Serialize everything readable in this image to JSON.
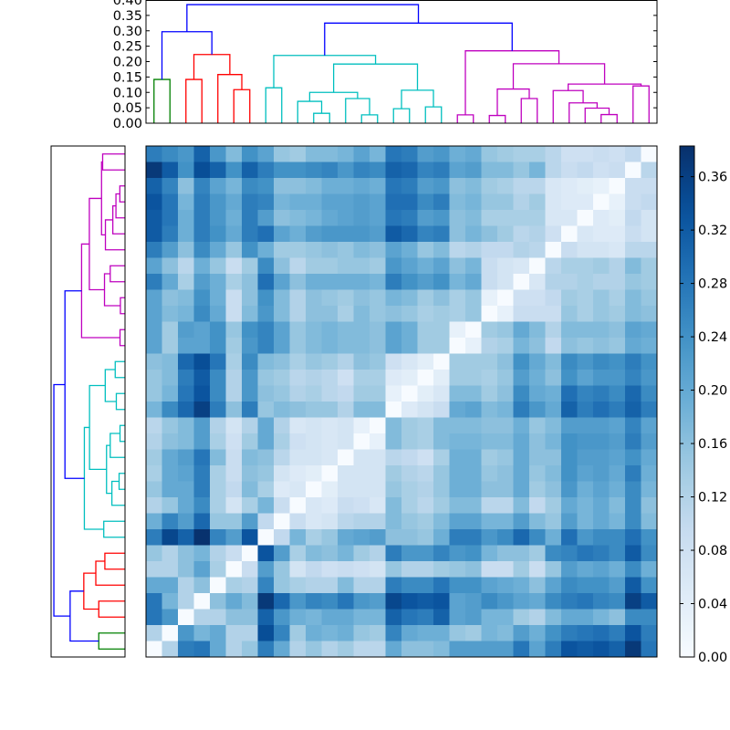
{
  "chart_data": {
    "type": "heatmap",
    "title": "",
    "colormap": "Blues",
    "vmin": 0.0,
    "vmax": 0.383,
    "colorbar": {
      "ticks": [
        0.0,
        0.04,
        0.08,
        0.12,
        0.16,
        0.2,
        0.24,
        0.28,
        0.32,
        0.36
      ],
      "tick_labels": [
        "0.00",
        "0.04",
        "0.08",
        "0.12",
        "0.16",
        "0.20",
        "0.24",
        "0.28",
        "0.32",
        "0.36"
      ]
    },
    "top_dendrogram_axis": {
      "ylim": [
        0.0,
        0.4
      ],
      "ticks": [
        0.0,
        0.05,
        0.1,
        0.15,
        0.2,
        0.25,
        0.3,
        0.35,
        0.4
      ],
      "tick_labels": [
        "0.00",
        "0.05",
        "0.10",
        "0.15",
        "0.20",
        "0.25",
        "0.30",
        "0.35",
        "0.40"
      ]
    },
    "cluster_colors": {
      "green": "#008000",
      "red": "#ff0000",
      "cyan": "#00bfbf",
      "magenta": "#bf00bf",
      "blue": "#0000ff"
    },
    "linkage": [
      [
        10,
        11,
        0.032,
        "cyan"
      ],
      [
        13,
        14,
        0.027,
        "cyan"
      ],
      [
        19,
        20,
        0.027,
        "magenta"
      ],
      [
        21,
        22,
        0.025,
        "magenta"
      ],
      [
        28,
        29,
        0.028,
        "magenta"
      ],
      [
        15,
        16,
        0.047,
        "cyan"
      ],
      [
        17,
        18,
        0.053,
        "cyan"
      ],
      [
        27,
        36,
        0.049,
        "magenta"
      ],
      [
        26,
        39,
        0.066,
        "magenta"
      ],
      [
        9,
        32,
        0.071,
        "cyan"
      ],
      [
        12,
        33,
        0.08,
        "cyan"
      ],
      [
        23,
        24,
        0.08,
        "magenta"
      ],
      [
        41,
        42,
        0.1,
        "cyan"
      ],
      [
        25,
        40,
        0.106,
        "magenta"
      ],
      [
        37,
        38,
        0.107,
        "cyan"
      ],
      [
        5,
        6,
        0.109,
        "red"
      ],
      [
        35,
        43,
        0.111,
        "magenta"
      ],
      [
        7,
        8,
        0.115,
        "cyan"
      ],
      [
        30,
        31,
        0.121,
        "magenta"
      ],
      [
        45,
        50,
        0.127,
        "magenta"
      ],
      [
        0,
        1,
        0.142,
        "green"
      ],
      [
        2,
        3,
        0.142,
        "red"
      ],
      [
        4,
        47,
        0.158,
        "red"
      ],
      [
        44,
        46,
        0.192,
        "cyan"
      ],
      [
        48,
        51,
        0.193,
        "magenta"
      ],
      [
        49,
        55,
        0.22,
        "cyan"
      ],
      [
        53,
        54,
        0.223,
        "red"
      ],
      [
        34,
        56,
        0.235,
        "magenta"
      ],
      [
        52,
        58,
        0.297,
        "blue"
      ],
      [
        57,
        59,
        0.325,
        "blue"
      ],
      [
        60,
        61,
        0.385,
        "blue"
      ]
    ],
    "values": [
      [
        0.27,
        0.25,
        0.23,
        0.31,
        0.23,
        0.17,
        0.24,
        0.21,
        0.15,
        0.14,
        0.17,
        0.17,
        0.18,
        0.21,
        0.18,
        0.28,
        0.27,
        0.22,
        0.23,
        0.19,
        0.2,
        0.15,
        0.14,
        0.13,
        0.13,
        0.11,
        0.08,
        0.08,
        0.09,
        0.08,
        0.1,
        0.0
      ],
      [
        0.37,
        0.32,
        0.24,
        0.34,
        0.31,
        0.24,
        0.31,
        0.27,
        0.24,
        0.24,
        0.25,
        0.26,
        0.23,
        0.26,
        0.25,
        0.31,
        0.3,
        0.26,
        0.27,
        0.21,
        0.22,
        0.17,
        0.17,
        0.15,
        0.18,
        0.11,
        0.09,
        0.1,
        0.08,
        0.09,
        0.0,
        0.11
      ],
      [
        0.31,
        0.26,
        0.16,
        0.26,
        0.21,
        0.18,
        0.25,
        0.24,
        0.16,
        0.16,
        0.17,
        0.19,
        0.19,
        0.2,
        0.19,
        0.28,
        0.27,
        0.22,
        0.23,
        0.16,
        0.17,
        0.14,
        0.13,
        0.11,
        0.11,
        0.06,
        0.05,
        0.04,
        0.03,
        0.0,
        0.09,
        0.09
      ],
      [
        0.33,
        0.28,
        0.18,
        0.27,
        0.23,
        0.2,
        0.27,
        0.26,
        0.18,
        0.19,
        0.19,
        0.21,
        0.21,
        0.22,
        0.21,
        0.29,
        0.29,
        0.25,
        0.27,
        0.17,
        0.18,
        0.15,
        0.15,
        0.12,
        0.14,
        0.06,
        0.05,
        0.05,
        0.0,
        0.03,
        0.09,
        0.1
      ],
      [
        0.32,
        0.28,
        0.19,
        0.27,
        0.23,
        0.19,
        0.27,
        0.22,
        0.16,
        0.17,
        0.18,
        0.2,
        0.21,
        0.22,
        0.21,
        0.28,
        0.27,
        0.22,
        0.23,
        0.16,
        0.17,
        0.13,
        0.13,
        0.13,
        0.13,
        0.06,
        0.06,
        0.0,
        0.05,
        0.04,
        0.1,
        0.07
      ],
      [
        0.32,
        0.27,
        0.19,
        0.27,
        0.24,
        0.2,
        0.27,
        0.29,
        0.21,
        0.19,
        0.22,
        0.23,
        0.23,
        0.23,
        0.22,
        0.32,
        0.3,
        0.26,
        0.27,
        0.16,
        0.18,
        0.16,
        0.14,
        0.11,
        0.12,
        0.08,
        0.0,
        0.06,
        0.05,
        0.05,
        0.09,
        0.07
      ],
      [
        0.27,
        0.22,
        0.16,
        0.25,
        0.2,
        0.15,
        0.24,
        0.19,
        0.14,
        0.14,
        0.15,
        0.16,
        0.15,
        0.17,
        0.16,
        0.21,
        0.19,
        0.15,
        0.17,
        0.11,
        0.12,
        0.1,
        0.1,
        0.12,
        0.11,
        0.0,
        0.09,
        0.07,
        0.07,
        0.06,
        0.11,
        0.11
      ],
      [
        0.21,
        0.16,
        0.11,
        0.19,
        0.15,
        0.09,
        0.14,
        0.25,
        0.16,
        0.11,
        0.14,
        0.14,
        0.15,
        0.15,
        0.14,
        0.23,
        0.21,
        0.19,
        0.21,
        0.16,
        0.18,
        0.09,
        0.07,
        0.06,
        0.0,
        0.11,
        0.13,
        0.13,
        0.14,
        0.12,
        0.17,
        0.14
      ],
      [
        0.27,
        0.2,
        0.13,
        0.22,
        0.19,
        0.13,
        0.16,
        0.29,
        0.21,
        0.16,
        0.19,
        0.19,
        0.19,
        0.19,
        0.18,
        0.27,
        0.24,
        0.22,
        0.24,
        0.18,
        0.2,
        0.09,
        0.07,
        0.0,
        0.06,
        0.12,
        0.12,
        0.13,
        0.12,
        0.12,
        0.15,
        0.14
      ],
      [
        0.21,
        0.16,
        0.17,
        0.24,
        0.19,
        0.09,
        0.16,
        0.24,
        0.17,
        0.12,
        0.16,
        0.15,
        0.14,
        0.16,
        0.15,
        0.18,
        0.17,
        0.14,
        0.16,
        0.13,
        0.15,
        0.03,
        0.0,
        0.08,
        0.08,
        0.1,
        0.14,
        0.13,
        0.15,
        0.13,
        0.17,
        0.15
      ],
      [
        0.21,
        0.17,
        0.18,
        0.25,
        0.2,
        0.09,
        0.17,
        0.23,
        0.17,
        0.12,
        0.16,
        0.16,
        0.13,
        0.17,
        0.15,
        0.16,
        0.15,
        0.13,
        0.14,
        0.13,
        0.15,
        0.0,
        0.03,
        0.09,
        0.09,
        0.09,
        0.15,
        0.13,
        0.15,
        0.14,
        0.17,
        0.16
      ],
      [
        0.21,
        0.14,
        0.22,
        0.21,
        0.24,
        0.15,
        0.24,
        0.26,
        0.21,
        0.15,
        0.17,
        0.18,
        0.17,
        0.17,
        0.16,
        0.21,
        0.19,
        0.14,
        0.14,
        0.03,
        0.0,
        0.14,
        0.15,
        0.2,
        0.17,
        0.12,
        0.17,
        0.17,
        0.17,
        0.16,
        0.21,
        0.2
      ],
      [
        0.21,
        0.14,
        0.21,
        0.21,
        0.24,
        0.14,
        0.23,
        0.26,
        0.21,
        0.15,
        0.17,
        0.18,
        0.17,
        0.17,
        0.16,
        0.21,
        0.19,
        0.14,
        0.14,
        0.0,
        0.03,
        0.12,
        0.13,
        0.18,
        0.16,
        0.1,
        0.16,
        0.15,
        0.16,
        0.15,
        0.2,
        0.19
      ],
      [
        0.16,
        0.17,
        0.3,
        0.34,
        0.28,
        0.13,
        0.25,
        0.17,
        0.16,
        0.13,
        0.15,
        0.14,
        0.12,
        0.16,
        0.15,
        0.08,
        0.06,
        0.04,
        0.0,
        0.14,
        0.14,
        0.14,
        0.16,
        0.24,
        0.2,
        0.17,
        0.25,
        0.23,
        0.25,
        0.24,
        0.27,
        0.24
      ],
      [
        0.15,
        0.17,
        0.27,
        0.32,
        0.25,
        0.12,
        0.23,
        0.15,
        0.14,
        0.11,
        0.12,
        0.11,
        0.08,
        0.13,
        0.13,
        0.05,
        0.04,
        0.0,
        0.04,
        0.14,
        0.14,
        0.13,
        0.15,
        0.22,
        0.19,
        0.16,
        0.24,
        0.21,
        0.23,
        0.23,
        0.26,
        0.23
      ],
      [
        0.15,
        0.18,
        0.28,
        0.33,
        0.25,
        0.12,
        0.23,
        0.16,
        0.15,
        0.12,
        0.13,
        0.11,
        0.1,
        0.14,
        0.14,
        0.03,
        0.0,
        0.04,
        0.06,
        0.17,
        0.17,
        0.14,
        0.16,
        0.25,
        0.2,
        0.19,
        0.29,
        0.26,
        0.27,
        0.25,
        0.3,
        0.25
      ],
      [
        0.18,
        0.25,
        0.3,
        0.36,
        0.27,
        0.16,
        0.27,
        0.15,
        0.17,
        0.16,
        0.15,
        0.15,
        0.12,
        0.17,
        0.17,
        0.0,
        0.05,
        0.07,
        0.09,
        0.2,
        0.21,
        0.17,
        0.18,
        0.27,
        0.23,
        0.2,
        0.31,
        0.27,
        0.29,
        0.27,
        0.31,
        0.27
      ],
      [
        0.11,
        0.15,
        0.17,
        0.22,
        0.12,
        0.07,
        0.12,
        0.2,
        0.12,
        0.06,
        0.07,
        0.06,
        0.07,
        0.03,
        0.0,
        0.17,
        0.14,
        0.13,
        0.17,
        0.17,
        0.17,
        0.16,
        0.16,
        0.19,
        0.15,
        0.17,
        0.22,
        0.22,
        0.22,
        0.21,
        0.26,
        0.21
      ],
      [
        0.12,
        0.16,
        0.17,
        0.22,
        0.13,
        0.08,
        0.14,
        0.2,
        0.13,
        0.08,
        0.07,
        0.06,
        0.07,
        0.0,
        0.03,
        0.17,
        0.14,
        0.13,
        0.17,
        0.18,
        0.18,
        0.17,
        0.17,
        0.2,
        0.16,
        0.18,
        0.24,
        0.23,
        0.23,
        0.22,
        0.27,
        0.22
      ],
      [
        0.14,
        0.2,
        0.22,
        0.28,
        0.17,
        0.09,
        0.17,
        0.16,
        0.11,
        0.07,
        0.07,
        0.06,
        0.0,
        0.07,
        0.07,
        0.11,
        0.1,
        0.08,
        0.13,
        0.19,
        0.19,
        0.14,
        0.15,
        0.2,
        0.16,
        0.16,
        0.24,
        0.22,
        0.22,
        0.21,
        0.24,
        0.2
      ],
      [
        0.13,
        0.2,
        0.21,
        0.27,
        0.13,
        0.09,
        0.16,
        0.15,
        0.07,
        0.05,
        0.04,
        0.0,
        0.07,
        0.07,
        0.07,
        0.14,
        0.12,
        0.11,
        0.15,
        0.19,
        0.19,
        0.15,
        0.16,
        0.2,
        0.15,
        0.17,
        0.24,
        0.21,
        0.22,
        0.2,
        0.27,
        0.19
      ],
      [
        0.15,
        0.2,
        0.2,
        0.27,
        0.13,
        0.1,
        0.17,
        0.13,
        0.05,
        0.06,
        0.0,
        0.04,
        0.07,
        0.07,
        0.07,
        0.15,
        0.13,
        0.12,
        0.15,
        0.19,
        0.19,
        0.16,
        0.16,
        0.2,
        0.14,
        0.16,
        0.23,
        0.19,
        0.21,
        0.19,
        0.25,
        0.18
      ],
      [
        0.12,
        0.15,
        0.2,
        0.25,
        0.13,
        0.07,
        0.13,
        0.18,
        0.09,
        0.0,
        0.06,
        0.05,
        0.09,
        0.08,
        0.06,
        0.17,
        0.13,
        0.11,
        0.14,
        0.17,
        0.17,
        0.11,
        0.11,
        0.17,
        0.1,
        0.14,
        0.2,
        0.18,
        0.2,
        0.17,
        0.25,
        0.16
      ],
      [
        0.19,
        0.26,
        0.22,
        0.3,
        0.15,
        0.15,
        0.22,
        0.1,
        0.0,
        0.09,
        0.06,
        0.07,
        0.11,
        0.12,
        0.12,
        0.17,
        0.15,
        0.14,
        0.17,
        0.21,
        0.21,
        0.18,
        0.18,
        0.22,
        0.17,
        0.15,
        0.22,
        0.18,
        0.2,
        0.18,
        0.25,
        0.17
      ],
      [
        0.27,
        0.35,
        0.31,
        0.38,
        0.26,
        0.22,
        0.33,
        0.0,
        0.1,
        0.18,
        0.13,
        0.15,
        0.2,
        0.21,
        0.22,
        0.16,
        0.16,
        0.15,
        0.19,
        0.27,
        0.27,
        0.23,
        0.25,
        0.3,
        0.25,
        0.19,
        0.29,
        0.23,
        0.25,
        0.25,
        0.29,
        0.24
      ],
      [
        0.15,
        0.12,
        0.16,
        0.18,
        0.12,
        0.09,
        0.0,
        0.33,
        0.22,
        0.13,
        0.17,
        0.16,
        0.18,
        0.14,
        0.12,
        0.27,
        0.23,
        0.23,
        0.26,
        0.23,
        0.24,
        0.18,
        0.16,
        0.16,
        0.14,
        0.25,
        0.26,
        0.28,
        0.27,
        0.25,
        0.32,
        0.25
      ],
      [
        0.12,
        0.12,
        0.16,
        0.21,
        0.13,
        0.0,
        0.09,
        0.22,
        0.15,
        0.07,
        0.1,
        0.08,
        0.09,
        0.08,
        0.07,
        0.15,
        0.12,
        0.12,
        0.14,
        0.15,
        0.16,
        0.09,
        0.09,
        0.14,
        0.09,
        0.15,
        0.22,
        0.2,
        0.21,
        0.19,
        0.25,
        0.19
      ],
      [
        0.2,
        0.2,
        0.12,
        0.16,
        0.0,
        0.13,
        0.12,
        0.26,
        0.15,
        0.13,
        0.12,
        0.12,
        0.17,
        0.12,
        0.12,
        0.27,
        0.25,
        0.25,
        0.28,
        0.24,
        0.24,
        0.21,
        0.2,
        0.19,
        0.16,
        0.21,
        0.25,
        0.24,
        0.24,
        0.22,
        0.32,
        0.24
      ],
      [
        0.28,
        0.18,
        0.12,
        0.0,
        0.16,
        0.2,
        0.17,
        0.37,
        0.3,
        0.23,
        0.26,
        0.25,
        0.28,
        0.23,
        0.22,
        0.35,
        0.33,
        0.32,
        0.33,
        0.21,
        0.22,
        0.25,
        0.23,
        0.21,
        0.2,
        0.25,
        0.27,
        0.28,
        0.26,
        0.25,
        0.36,
        0.32
      ],
      [
        0.28,
        0.23,
        0.0,
        0.12,
        0.12,
        0.16,
        0.16,
        0.31,
        0.23,
        0.19,
        0.18,
        0.2,
        0.2,
        0.18,
        0.18,
        0.31,
        0.28,
        0.27,
        0.31,
        0.21,
        0.22,
        0.18,
        0.18,
        0.14,
        0.12,
        0.17,
        0.2,
        0.2,
        0.18,
        0.16,
        0.25,
        0.25
      ],
      [
        0.12,
        0.0,
        0.23,
        0.18,
        0.2,
        0.12,
        0.12,
        0.34,
        0.26,
        0.14,
        0.19,
        0.18,
        0.19,
        0.15,
        0.14,
        0.26,
        0.2,
        0.19,
        0.19,
        0.15,
        0.14,
        0.18,
        0.17,
        0.22,
        0.19,
        0.24,
        0.27,
        0.28,
        0.29,
        0.27,
        0.33,
        0.27
      ],
      [
        0.0,
        0.12,
        0.27,
        0.28,
        0.2,
        0.12,
        0.15,
        0.27,
        0.2,
        0.12,
        0.15,
        0.12,
        0.14,
        0.11,
        0.11,
        0.2,
        0.16,
        0.16,
        0.17,
        0.22,
        0.22,
        0.22,
        0.22,
        0.28,
        0.21,
        0.27,
        0.33,
        0.32,
        0.33,
        0.31,
        0.37,
        0.28
      ]
    ]
  }
}
